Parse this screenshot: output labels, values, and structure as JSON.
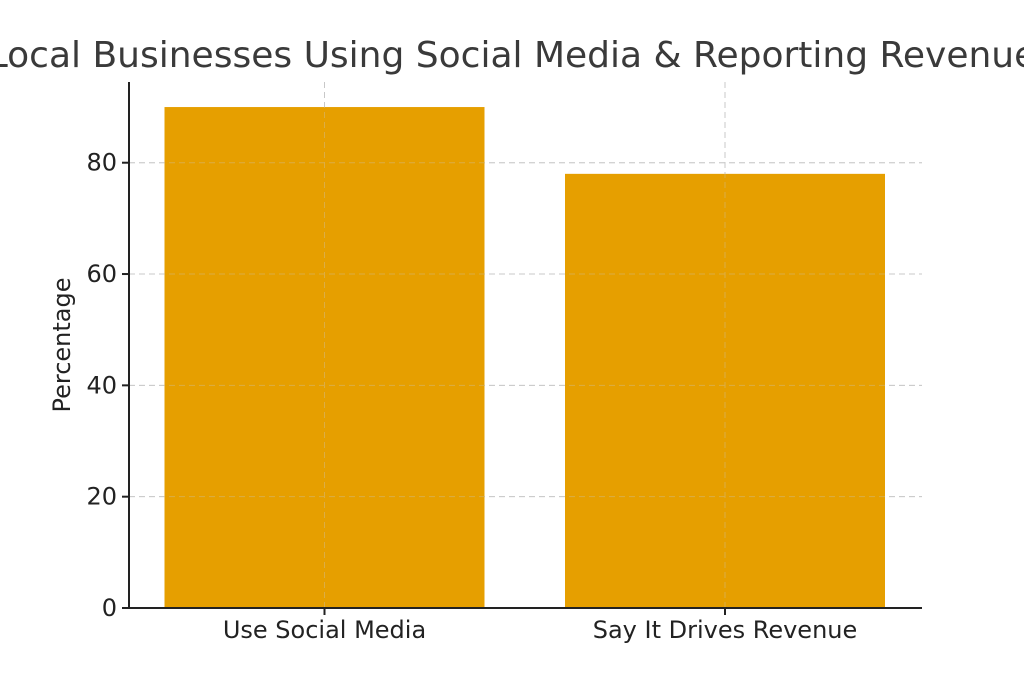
{
  "chart_data": {
    "type": "bar",
    "title": "Local Businesses Using Social Media & Reporting Revenue",
    "xlabel": "",
    "ylabel": "Percentage",
    "categories": [
      "Use Social Media",
      "Say It Drives Revenue"
    ],
    "values": [
      90,
      78
    ],
    "ylim": [
      0,
      94.5
    ],
    "yticks": [
      0,
      20,
      40,
      60,
      80
    ],
    "ytick_labels": [
      "0",
      "20",
      "40",
      "60",
      "80"
    ],
    "grid": true,
    "bar_color": "#e69f00",
    "legend": "none"
  }
}
